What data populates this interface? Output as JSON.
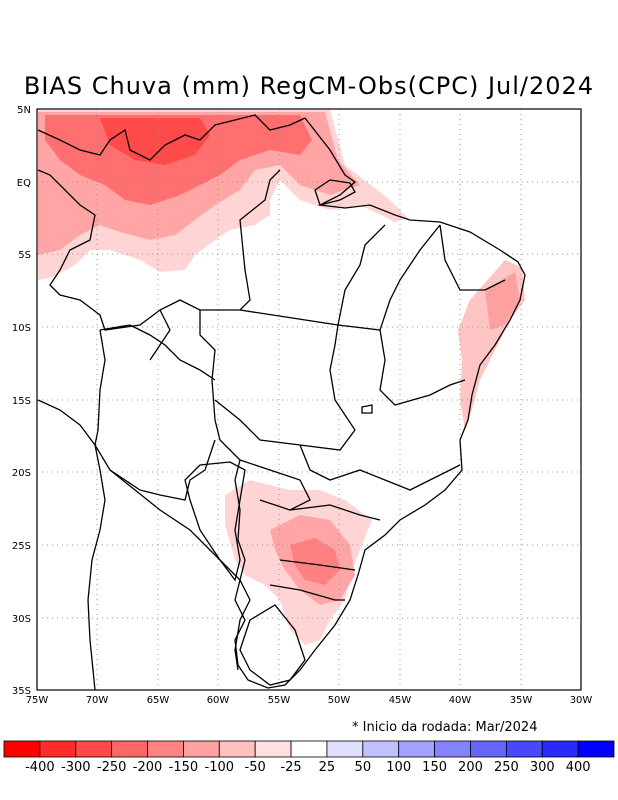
{
  "title": "BIAS Chuva (mm) RegCM-Obs(CPC) Jul/2024",
  "note": "Inicio da rodada: Mar/2024",
  "note_marker": "*",
  "lat_ticks": [
    "5N",
    "EQ",
    "5S",
    "10S",
    "15S",
    "20S",
    "25S",
    "30S",
    "35S"
  ],
  "lon_ticks": [
    "75W",
    "70W",
    "65W",
    "60W",
    "55W",
    "50W",
    "45W",
    "40W",
    "35W",
    "30W"
  ],
  "colorbar": {
    "labels": [
      "-400",
      "-300",
      "-250",
      "-200",
      "-150",
      "-100",
      "-50",
      "-25",
      "25",
      "50",
      "100",
      "150",
      "200",
      "250",
      "300",
      "400"
    ],
    "colors": [
      "#ff0000",
      "#ff2a2a",
      "#ff4848",
      "#ff6666",
      "#ff8383",
      "#ffa1a1",
      "#ffc0c0",
      "#ffdfdf",
      "#ffffff",
      "#dfdfff",
      "#c0c0ff",
      "#a1a1ff",
      "#8383ff",
      "#6666ff",
      "#4848ff",
      "#2a2aff",
      "#0000ff"
    ]
  },
  "colors": {
    "deficit_strong": "#ff5a5a",
    "deficit_medium": "#ff9c9c",
    "deficit_light": "#ffd4d4"
  }
}
